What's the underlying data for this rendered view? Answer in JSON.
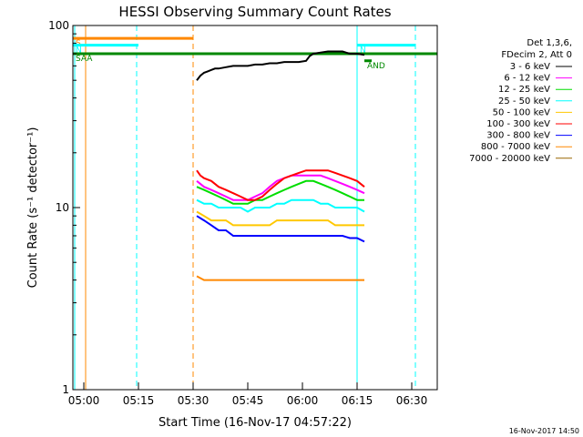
{
  "chart_data": {
    "type": "line",
    "title": "HESSI Observing Summary Count Rates",
    "xlabel": "Start Time (16-Nov-17 04:57:22)",
    "ylabel": "Count Rate (s⁻¹ detector⁻¹)",
    "x_unit": "minutes after 04:57:22",
    "xlim": [
      0,
      100
    ],
    "ylim": [
      1,
      100
    ],
    "y_scale": "log",
    "x_ticks": [
      {
        "v": 3,
        "label": "05:00"
      },
      {
        "v": 18,
        "label": "05:15"
      },
      {
        "v": 33,
        "label": "05:30"
      },
      {
        "v": 48,
        "label": "05:45"
      },
      {
        "v": 63,
        "label": "06:00"
      },
      {
        "v": 78,
        "label": "06:15"
      },
      {
        "v": 93,
        "label": "06:30"
      }
    ],
    "y_ticks": [
      {
        "v": 1,
        "label": "1"
      },
      {
        "v": 10,
        "label": "10"
      },
      {
        "v": 100,
        "label": "100"
      }
    ],
    "legend_header": [
      "Det 1,3,6,",
      "FDecim 2, Att 0"
    ],
    "legend_position": "right",
    "series": [
      {
        "name": "3 - 6 keV",
        "color": "#000000",
        "points": [
          [
            34,
            50
          ],
          [
            35,
            53
          ],
          [
            36,
            55
          ],
          [
            37,
            56
          ],
          [
            38,
            57
          ],
          [
            39,
            58
          ],
          [
            40,
            58
          ],
          [
            42,
            59
          ],
          [
            44,
            60
          ],
          [
            46,
            60
          ],
          [
            48,
            60
          ],
          [
            50,
            61
          ],
          [
            52,
            61
          ],
          [
            54,
            62
          ],
          [
            56,
            62
          ],
          [
            58,
            63
          ],
          [
            60,
            63
          ],
          [
            62,
            63
          ],
          [
            64,
            64
          ],
          [
            65,
            68
          ],
          [
            66,
            70
          ],
          [
            68,
            71
          ],
          [
            70,
            72
          ],
          [
            72,
            72
          ],
          [
            74,
            72
          ],
          [
            76,
            70
          ],
          [
            78,
            70
          ],
          [
            80,
            69
          ]
        ]
      },
      {
        "name": "6 - 12 keV",
        "color": "#ff00ff",
        "points": [
          [
            34,
            14
          ],
          [
            36,
            13
          ],
          [
            38,
            12.5
          ],
          [
            40,
            12
          ],
          [
            42,
            11.5
          ],
          [
            44,
            11
          ],
          [
            46,
            11
          ],
          [
            48,
            11
          ],
          [
            50,
            11.5
          ],
          [
            52,
            12
          ],
          [
            54,
            13
          ],
          [
            56,
            14
          ],
          [
            58,
            14.5
          ],
          [
            60,
            15
          ],
          [
            62,
            15
          ],
          [
            64,
            15
          ],
          [
            66,
            15
          ],
          [
            68,
            15
          ],
          [
            70,
            14.5
          ],
          [
            72,
            14
          ],
          [
            74,
            13.5
          ],
          [
            76,
            13
          ],
          [
            78,
            12.5
          ],
          [
            80,
            12
          ]
        ]
      },
      {
        "name": "12 - 25 keV",
        "color": "#00dd00",
        "points": [
          [
            34,
            13
          ],
          [
            36,
            12.5
          ],
          [
            38,
            12
          ],
          [
            40,
            11.5
          ],
          [
            42,
            11
          ],
          [
            44,
            10.5
          ],
          [
            46,
            10.5
          ],
          [
            48,
            10.5
          ],
          [
            50,
            11
          ],
          [
            52,
            11
          ],
          [
            54,
            11.5
          ],
          [
            56,
            12
          ],
          [
            58,
            12.5
          ],
          [
            60,
            13
          ],
          [
            62,
            13.5
          ],
          [
            64,
            14
          ],
          [
            66,
            14
          ],
          [
            68,
            13.5
          ],
          [
            70,
            13
          ],
          [
            72,
            12.5
          ],
          [
            74,
            12
          ],
          [
            76,
            11.5
          ],
          [
            78,
            11
          ],
          [
            80,
            11
          ]
        ]
      },
      {
        "name": "25 - 50 keV",
        "color": "#00ffff",
        "points": [
          [
            34,
            11
          ],
          [
            36,
            10.5
          ],
          [
            38,
            10.5
          ],
          [
            40,
            10
          ],
          [
            42,
            10
          ],
          [
            44,
            10
          ],
          [
            46,
            10
          ],
          [
            48,
            9.5
          ],
          [
            50,
            10
          ],
          [
            52,
            10
          ],
          [
            54,
            10
          ],
          [
            56,
            10.5
          ],
          [
            58,
            10.5
          ],
          [
            60,
            11
          ],
          [
            62,
            11
          ],
          [
            64,
            11
          ],
          [
            66,
            11
          ],
          [
            68,
            10.5
          ],
          [
            70,
            10.5
          ],
          [
            72,
            10
          ],
          [
            74,
            10
          ],
          [
            76,
            10
          ],
          [
            78,
            10
          ],
          [
            80,
            9.5
          ]
        ]
      },
      {
        "name": "50 - 100 keV",
        "color": "#ffc800",
        "points": [
          [
            34,
            9.5
          ],
          [
            36,
            9
          ],
          [
            38,
            8.5
          ],
          [
            40,
            8.5
          ],
          [
            42,
            8.5
          ],
          [
            44,
            8
          ],
          [
            46,
            8
          ],
          [
            48,
            8
          ],
          [
            50,
            8
          ],
          [
            52,
            8
          ],
          [
            54,
            8
          ],
          [
            56,
            8.5
          ],
          [
            58,
            8.5
          ],
          [
            60,
            8.5
          ],
          [
            62,
            8.5
          ],
          [
            64,
            8.5
          ],
          [
            66,
            8.5
          ],
          [
            68,
            8.5
          ],
          [
            70,
            8.5
          ],
          [
            72,
            8
          ],
          [
            74,
            8
          ],
          [
            76,
            8
          ],
          [
            78,
            8
          ],
          [
            80,
            8
          ]
        ]
      },
      {
        "name": "100 - 300 keV",
        "color": "#ff0000",
        "points": [
          [
            34,
            16
          ],
          [
            35,
            15
          ],
          [
            36,
            14.5
          ],
          [
            38,
            14
          ],
          [
            40,
            13
          ],
          [
            42,
            12.5
          ],
          [
            44,
            12
          ],
          [
            46,
            11.5
          ],
          [
            48,
            11
          ],
          [
            50,
            11
          ],
          [
            52,
            11.5
          ],
          [
            54,
            12.5
          ],
          [
            56,
            13.5
          ],
          [
            58,
            14.5
          ],
          [
            60,
            15
          ],
          [
            62,
            15.5
          ],
          [
            64,
            16
          ],
          [
            66,
            16
          ],
          [
            68,
            16
          ],
          [
            70,
            16
          ],
          [
            72,
            15.5
          ],
          [
            74,
            15
          ],
          [
            76,
            14.5
          ],
          [
            78,
            14
          ],
          [
            80,
            13
          ]
        ]
      },
      {
        "name": "300 - 800 keV",
        "color": "#0000ff",
        "points": [
          [
            34,
            9
          ],
          [
            36,
            8.5
          ],
          [
            38,
            8
          ],
          [
            40,
            7.5
          ],
          [
            42,
            7.5
          ],
          [
            44,
            7
          ],
          [
            46,
            7
          ],
          [
            48,
            7
          ],
          [
            50,
            7
          ],
          [
            52,
            7
          ],
          [
            54,
            7
          ],
          [
            56,
            7
          ],
          [
            58,
            7
          ],
          [
            60,
            7
          ],
          [
            62,
            7
          ],
          [
            64,
            7
          ],
          [
            66,
            7
          ],
          [
            68,
            7
          ],
          [
            70,
            7
          ],
          [
            72,
            7
          ],
          [
            74,
            7
          ],
          [
            76,
            6.8
          ],
          [
            78,
            6.8
          ],
          [
            80,
            6.5
          ]
        ]
      },
      {
        "name": "800 - 7000 keV",
        "color": "#ff8800",
        "points": [
          [
            34,
            4.2
          ],
          [
            36,
            4
          ],
          [
            38,
            4
          ],
          [
            40,
            4
          ],
          [
            42,
            4
          ],
          [
            44,
            4
          ],
          [
            46,
            4
          ],
          [
            48,
            4
          ],
          [
            50,
            4
          ],
          [
            52,
            4
          ],
          [
            54,
            4
          ],
          [
            56,
            4
          ],
          [
            58,
            4
          ],
          [
            60,
            4
          ],
          [
            62,
            4
          ],
          [
            64,
            4
          ],
          [
            66,
            4
          ],
          [
            68,
            4
          ],
          [
            70,
            4
          ],
          [
            72,
            4
          ],
          [
            74,
            4
          ],
          [
            76,
            4
          ],
          [
            78,
            4
          ],
          [
            80,
            4
          ]
        ]
      },
      {
        "name": "7000 - 20000 keV",
        "color": "#996600",
        "points": []
      }
    ],
    "flags": [
      {
        "label": "S",
        "color": "#ff8800",
        "x0": 0,
        "x1": 33,
        "y": 85
      },
      {
        "label": "N",
        "color": "#00ffff",
        "x0": 0,
        "x1": 18,
        "y": 78
      },
      {
        "label": "SAA",
        "color": "#008800",
        "x0": 0,
        "x1": 100,
        "y": 70
      },
      {
        "label": "AND",
        "color": "#008800",
        "x0": 80,
        "x1": 82,
        "y": 64
      },
      {
        "label": "N",
        "color": "#00ffff",
        "x0": 78,
        "x1": 94,
        "y": 78
      }
    ]
  },
  "footer_date": "16-Nov-2017 14:50"
}
